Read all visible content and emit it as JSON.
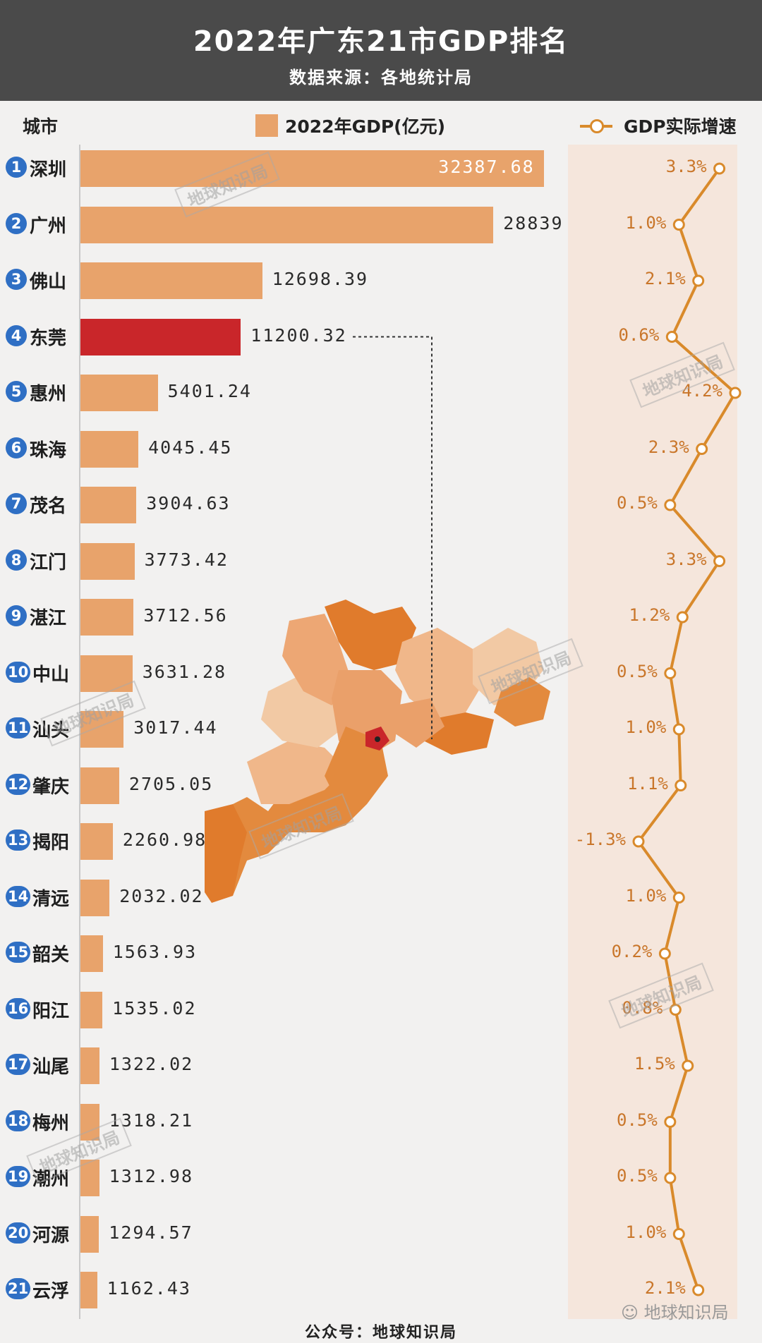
{
  "header": {
    "title": "2022年广东21市GDP排名",
    "subtitle": "数据来源：各地统计局",
    "bg_color": "#4a4a4a"
  },
  "legend": {
    "city_header": "城市",
    "gdp_label": "2022年GDP(亿元)",
    "growth_label": "GDP实际增速"
  },
  "watermark_text": "地球知识局",
  "footer": {
    "text": "公众号：地球知识局",
    "account": "地球知识局",
    "wechat_icon": "wechat-icon"
  },
  "colors": {
    "bar": "#e8a36b",
    "highlight_bar": "#c9262a",
    "growth_line": "#d98a2b",
    "growth_panel": "#f5e6dc",
    "rank_badge": "#2f6fc4"
  },
  "chart_data": {
    "type": "bar",
    "orientation": "horizontal",
    "title": "2022年广东21市GDP排名",
    "subtitle": "数据来源：各地统计局",
    "highlighted_category": "东莞",
    "categories": [
      "深圳",
      "广州",
      "佛山",
      "东莞",
      "惠州",
      "珠海",
      "茂名",
      "江门",
      "湛江",
      "中山",
      "汕头",
      "肇庆",
      "揭阳",
      "清远",
      "韶关",
      "阳江",
      "汕尾",
      "梅州",
      "潮州",
      "河源",
      "云浮"
    ],
    "ranks": [
      "1",
      "2",
      "3",
      "4",
      "5",
      "6",
      "7",
      "8",
      "9",
      "10",
      "11",
      "12",
      "13",
      "14",
      "15",
      "16",
      "17",
      "18",
      "19",
      "20",
      "21"
    ],
    "series": [
      {
        "name": "2022年GDP(亿元)",
        "type": "bar",
        "values": [
          32387.68,
          28839,
          12698.39,
          11200.32,
          5401.24,
          4045.45,
          3904.63,
          3773.42,
          3712.56,
          3631.28,
          3017.44,
          2705.05,
          2260.98,
          2032.02,
          1563.93,
          1535.02,
          1322.02,
          1318.21,
          1312.98,
          1294.57,
          1162.43
        ],
        "labels": [
          "32387.68",
          "28839",
          "12698.39",
          "11200.32",
          "5401.24",
          "4045.45",
          "3904.63",
          "3773.42",
          "3712.56",
          "3631.28",
          "3017.44",
          "2705.05",
          "2260.98",
          "2032.02",
          "1563.93",
          "1535.02",
          "1322.02",
          "1318.21",
          "1312.98",
          "1294.57",
          "1162.43"
        ]
      },
      {
        "name": "GDP实际增速",
        "type": "line",
        "unit": "%",
        "values": [
          3.3,
          1.0,
          2.1,
          0.6,
          4.2,
          2.3,
          0.5,
          3.3,
          1.2,
          0.5,
          1.0,
          1.1,
          -1.3,
          1.0,
          0.2,
          0.8,
          1.5,
          0.5,
          0.5,
          1.0,
          2.1
        ],
        "labels": [
          "3.3%",
          "1.0%",
          "2.1%",
          "0.6%",
          "4.2%",
          "2.3%",
          "0.5%",
          "3.3%",
          "1.2%",
          "0.5%",
          "1.0%",
          "1.1%",
          "-1.3%",
          "1.0%",
          "0.2%",
          "0.8%",
          "1.5%",
          "0.5%",
          "0.5%",
          "1.0%",
          "2.1%"
        ]
      }
    ],
    "xlim": [
      0,
      34000
    ],
    "growth_xlim": [
      -1.3,
      4.2
    ]
  }
}
